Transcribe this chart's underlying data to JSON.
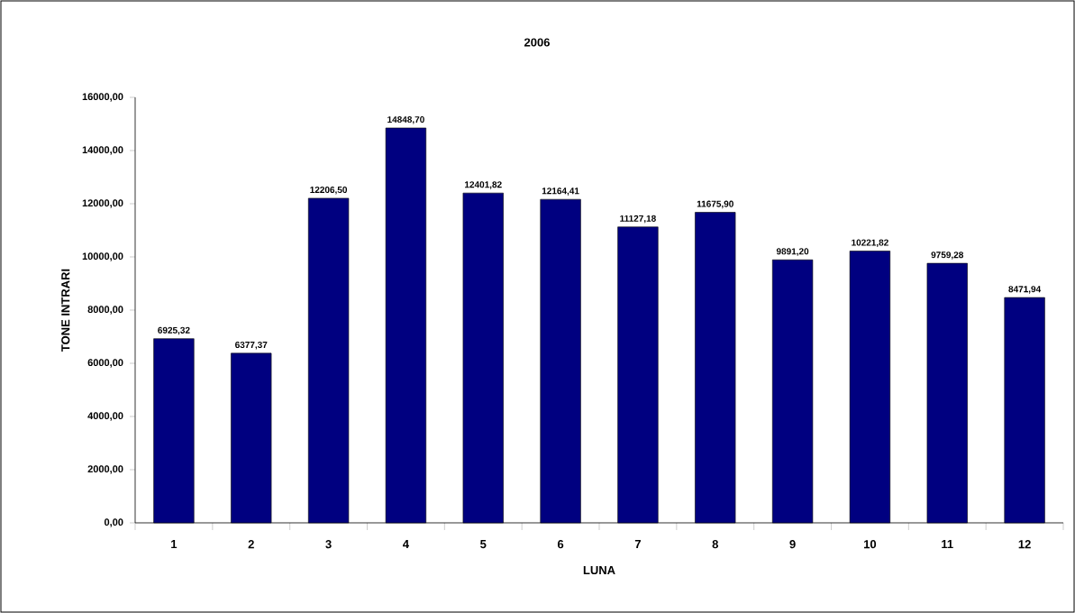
{
  "chart_data": {
    "type": "bar",
    "title": "2006",
    "xlabel": "LUNA",
    "ylabel": "TONE INTRARI",
    "categories": [
      "1",
      "2",
      "3",
      "4",
      "5",
      "6",
      "7",
      "8",
      "9",
      "10",
      "11",
      "12"
    ],
    "values": [
      6925.32,
      6377.37,
      12206.5,
      14848.7,
      12401.82,
      12164.41,
      11127.18,
      11675.9,
      9891.2,
      10221.82,
      9759.28,
      8471.94
    ],
    "value_labels": [
      "6925,32",
      "6377,37",
      "12206,50",
      "14848,70",
      "12401,82",
      "12164,41",
      "11127,18",
      "11675,90",
      "9891,20",
      "10221,82",
      "9759,28",
      "8471,94"
    ],
    "color": "#000080",
    "ylim": [
      0,
      16000
    ],
    "yticks": [
      {
        "value": 0,
        "label": "0,00"
      },
      {
        "value": 2000,
        "label": "2000,00"
      },
      {
        "value": 4000,
        "label": "4000,00"
      },
      {
        "value": 6000,
        "label": "6000,00"
      },
      {
        "value": 8000,
        "label": "8000,00"
      },
      {
        "value": 10000,
        "label": "10000,00"
      },
      {
        "value": 12000,
        "label": "12000,00"
      },
      {
        "value": 14000,
        "label": "14000,00"
      },
      {
        "value": 16000,
        "label": "16000,00"
      }
    ]
  }
}
